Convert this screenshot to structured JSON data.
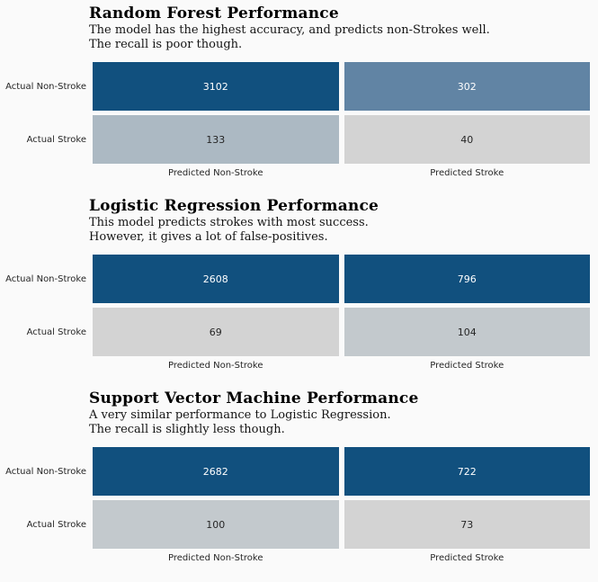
{
  "palette": {
    "background": "#fafafa",
    "dark_blue": "#11507e",
    "slate_blue": "#6184a4",
    "blue_gray": "#acb9c3",
    "medium_gray": "#c3c9cd",
    "light_gray": "#d3d3d3"
  },
  "sections": [
    {
      "title": "Random Forest Performance",
      "description_line1": "The model has the highest accuracy, and predicts non-Strokes well.",
      "description_line2": "The recall is poor though.",
      "row_labels": [
        "Actual Non-Stroke",
        "Actual Stroke"
      ],
      "col_labels": [
        "Predicted Non-Stroke",
        "Predicted Stroke"
      ],
      "cells": [
        {
          "value": "3102",
          "bg": "#11507e",
          "fg": "#ffffff"
        },
        {
          "value": "302",
          "bg": "#6184a4",
          "fg": "#ffffff"
        },
        {
          "value": "133",
          "bg": "#acb9c3",
          "fg": "#262626"
        },
        {
          "value": "40",
          "bg": "#d3d3d3",
          "fg": "#262626"
        }
      ]
    },
    {
      "title": "Logistic Regression Performance",
      "description_line1": "This model predicts strokes with most success.",
      "description_line2": "However, it gives a lot of false-positives.",
      "row_labels": [
        "Actual Non-Stroke",
        "Actual Stroke"
      ],
      "col_labels": [
        "Predicted Non-Stroke",
        "Predicted Stroke"
      ],
      "cells": [
        {
          "value": "2608",
          "bg": "#11507e",
          "fg": "#ffffff"
        },
        {
          "value": "796",
          "bg": "#11507e",
          "fg": "#ffffff"
        },
        {
          "value": "69",
          "bg": "#d3d3d3",
          "fg": "#262626"
        },
        {
          "value": "104",
          "bg": "#c3c9cd",
          "fg": "#262626"
        }
      ]
    },
    {
      "title": "Support Vector Machine Performance",
      "description_line1": "A very similar performance to Logistic Regression.",
      "description_line2": "The recall is slightly less though.",
      "row_labels": [
        "Actual Non-Stroke",
        "Actual Stroke"
      ],
      "col_labels": [
        "Predicted Non-Stroke",
        "Predicted Stroke"
      ],
      "cells": [
        {
          "value": "2682",
          "bg": "#11507e",
          "fg": "#ffffff"
        },
        {
          "value": "722",
          "bg": "#11507e",
          "fg": "#ffffff"
        },
        {
          "value": "100",
          "bg": "#c3c9cd",
          "fg": "#262626"
        },
        {
          "value": "73",
          "bg": "#d3d3d3",
          "fg": "#262626"
        }
      ]
    }
  ],
  "chart_data": [
    {
      "type": "heatmap",
      "title": "Random Forest Performance",
      "subtitle": "The model has the highest accuracy, and predicts non-Strokes well. The recall is poor though.",
      "rows": [
        "Actual Non-Stroke",
        "Actual Stroke"
      ],
      "columns": [
        "Predicted Non-Stroke",
        "Predicted Stroke"
      ],
      "values": [
        [
          3102,
          302
        ],
        [
          133,
          40
        ]
      ],
      "legend": "none",
      "grid": false
    },
    {
      "type": "heatmap",
      "title": "Logistic Regression Performance",
      "subtitle": "This model predicts strokes with most success. However, it gives a lot of false-positives.",
      "rows": [
        "Actual Non-Stroke",
        "Actual Stroke"
      ],
      "columns": [
        "Predicted Non-Stroke",
        "Predicted Stroke"
      ],
      "values": [
        [
          2608,
          796
        ],
        [
          69,
          104
        ]
      ],
      "legend": "none",
      "grid": false
    },
    {
      "type": "heatmap",
      "title": "Support Vector Machine Performance",
      "subtitle": "A very similar performance to Logistic Regression. The recall is slightly less though.",
      "rows": [
        "Actual Non-Stroke",
        "Actual Stroke"
      ],
      "columns": [
        "Predicted Non-Stroke",
        "Predicted Stroke"
      ],
      "values": [
        [
          2682,
          722
        ],
        [
          100,
          73
        ]
      ],
      "legend": "none",
      "grid": false
    }
  ]
}
